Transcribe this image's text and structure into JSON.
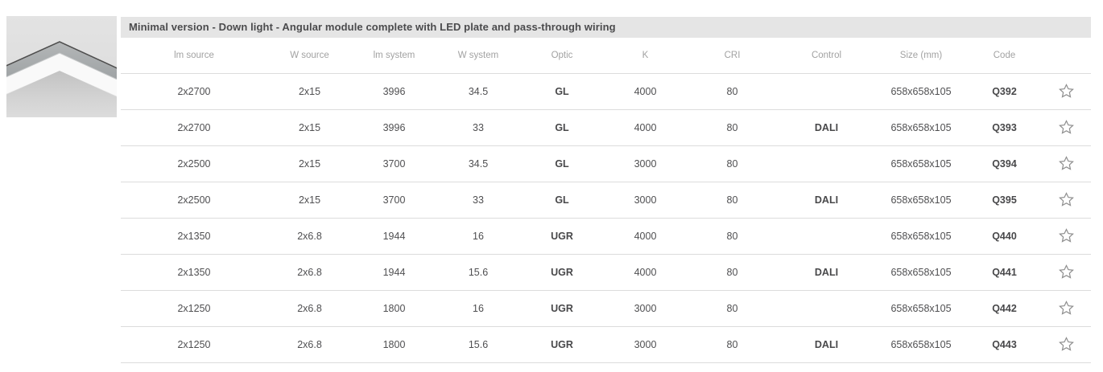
{
  "product": {
    "image_alt": "Angular lighting module corner detail"
  },
  "header": {
    "title": "Minimal version - Down light - Angular module complete with LED plate and pass-through wiring"
  },
  "table": {
    "columns": [
      "lm source",
      "W source",
      "lm system",
      "W system",
      "Optic",
      "K",
      "CRI",
      "Control",
      "Size (mm)",
      "Code"
    ],
    "bold_columns": [
      "Optic",
      "Control",
      "Code"
    ],
    "favorite_icon": "star-outline",
    "rows": [
      [
        "2x2700",
        "2x15",
        "3996",
        "34.5",
        "GL",
        "4000",
        "80",
        "",
        "658x658x105",
        "Q392"
      ],
      [
        "2x2700",
        "2x15",
        "3996",
        "33",
        "GL",
        "4000",
        "80",
        "DALI",
        "658x658x105",
        "Q393"
      ],
      [
        "2x2500",
        "2x15",
        "3700",
        "34.5",
        "GL",
        "3000",
        "80",
        "",
        "658x658x105",
        "Q394"
      ],
      [
        "2x2500",
        "2x15",
        "3700",
        "33",
        "GL",
        "3000",
        "80",
        "DALI",
        "658x658x105",
        "Q395"
      ],
      [
        "2x1350",
        "2x6.8",
        "1944",
        "16",
        "UGR",
        "4000",
        "80",
        "",
        "658x658x105",
        "Q440"
      ],
      [
        "2x1350",
        "2x6.8",
        "1944",
        "15.6",
        "UGR",
        "4000",
        "80",
        "DALI",
        "658x658x105",
        "Q441"
      ],
      [
        "2x1250",
        "2x6.8",
        "1800",
        "16",
        "UGR",
        "3000",
        "80",
        "",
        "658x658x105",
        "Q442"
      ],
      [
        "2x1250",
        "2x6.8",
        "1800",
        "15.6",
        "UGR",
        "3000",
        "80",
        "DALI",
        "658x658x105",
        "Q443"
      ]
    ]
  },
  "colors": {
    "title_bar_bg": "#e5e5e5",
    "title_text": "#4b4b4d",
    "header_text": "#a2a2a2",
    "data_text": "#4f4f51",
    "row_border": "#dcdcdc",
    "star_stroke": "#8f8f8f"
  }
}
